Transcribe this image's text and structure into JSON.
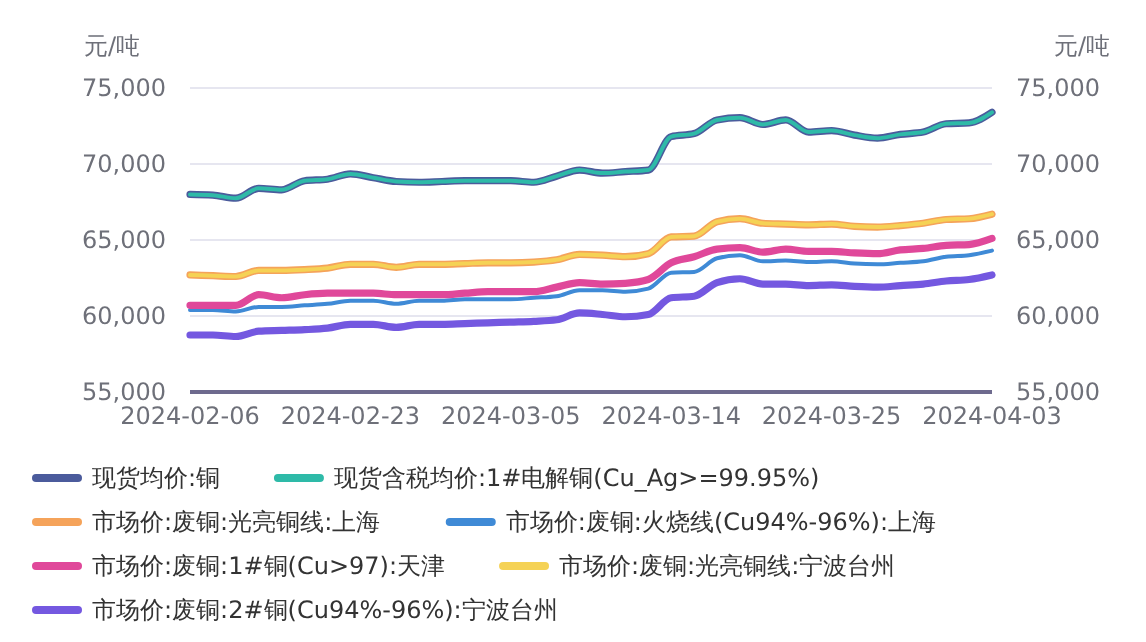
{
  "chart_data": {
    "type": "line",
    "ylabel": "元/吨",
    "y2label": "元/吨",
    "categories": [
      "2024-02-06",
      null,
      null,
      null,
      null,
      null,
      null,
      "2024-02-23",
      null,
      null,
      null,
      null,
      null,
      null,
      "2024-03-05",
      null,
      null,
      null,
      null,
      null,
      null,
      "2024-03-14",
      null,
      null,
      null,
      null,
      null,
      null,
      "2024-03-25",
      null,
      null,
      null,
      null,
      null,
      null,
      "2024-04-03"
    ],
    "ylim": [
      55000,
      75000
    ],
    "yticks": [
      {
        "value": 55000,
        "label": "55,000"
      },
      {
        "value": 60000,
        "label": "60,000"
      },
      {
        "value": 65000,
        "label": "65,000"
      },
      {
        "value": 70000,
        "label": "70,000"
      },
      {
        "value": 75000,
        "label": "75,000"
      }
    ],
    "y2lim": [
      55000,
      75000
    ],
    "y2ticks": [
      {
        "value": 55000,
        "label": "55,000"
      },
      {
        "value": 60000,
        "label": "60,000"
      },
      {
        "value": 65000,
        "label": "65,000"
      },
      {
        "value": 70000,
        "label": "70,000"
      },
      {
        "value": 75000,
        "label": "75,000"
      }
    ],
    "grid": "y",
    "legend": "bottom",
    "marker": "none",
    "line_style": "solid",
    "series": [
      {
        "name": "现货均价:铜",
        "color": "#4b5b9c",
        "values": [
          68000,
          67950,
          67750,
          68400,
          68300,
          68900,
          69000,
          69350,
          69100,
          68850,
          68800,
          68850,
          68900,
          68900,
          68900,
          68800,
          69200,
          69600,
          69400,
          69500,
          69600,
          71800,
          72000,
          72900,
          73050,
          72600,
          72900,
          72100,
          72200,
          71900,
          71700,
          71950,
          72100,
          72650,
          72700,
          73400
        ]
      },
      {
        "name": "现货含税均价:1#电解铜(Cu_Ag>=99.95%)",
        "color": "#2ebaa8",
        "values": [
          68000,
          67950,
          67750,
          68400,
          68300,
          68900,
          69000,
          69350,
          69100,
          68850,
          68800,
          68850,
          68900,
          68900,
          68900,
          68800,
          69200,
          69600,
          69400,
          69500,
          69600,
          71800,
          72000,
          72900,
          73050,
          72600,
          72900,
          72100,
          72200,
          71900,
          71700,
          71950,
          72100,
          72650,
          72700,
          73400
        ]
      },
      {
        "name": "市场价:废铜:光亮铜线:上海",
        "color": "#f5a35a",
        "values": [
          62700,
          62650,
          62600,
          63000,
          63000,
          63050,
          63150,
          63400,
          63400,
          63200,
          63400,
          63400,
          63450,
          63500,
          63500,
          63550,
          63700,
          64050,
          64000,
          63900,
          64100,
          65200,
          65250,
          66200,
          66400,
          66100,
          66050,
          66000,
          66050,
          65900,
          65850,
          65950,
          66100,
          66350,
          66400,
          66700
        ]
      },
      {
        "name": "市场价:废铜:火烧线(Cu94%-96%):上海",
        "color": "#3f8ad6",
        "values": [
          60400,
          60400,
          60300,
          60600,
          60600,
          60700,
          60800,
          61000,
          61000,
          60800,
          61000,
          61000,
          61100,
          61100,
          61100,
          61200,
          61300,
          61700,
          61700,
          61600,
          61800,
          62850,
          62900,
          63800,
          64000,
          63600,
          63650,
          63550,
          63600,
          63450,
          63400,
          63500,
          63600,
          63900,
          64000,
          64300
        ]
      },
      {
        "name": "市场价:废铜:1#铜(Cu>97):天津",
        "color": "#e0489a",
        "values": [
          60700,
          60700,
          60700,
          61400,
          61200,
          61400,
          61500,
          61500,
          61500,
          61400,
          61400,
          61400,
          61500,
          61600,
          61600,
          61600,
          61900,
          62200,
          62100,
          62150,
          62400,
          63500,
          63900,
          64400,
          64500,
          64200,
          64400,
          64250,
          64250,
          64150,
          64100,
          64350,
          64450,
          64650,
          64700,
          65100
        ]
      },
      {
        "name": "市场价:废铜:光亮铜线:宁波台州",
        "color": "#f5d255",
        "values": [
          62700,
          62650,
          62600,
          63000,
          63000,
          63050,
          63150,
          63400,
          63400,
          63200,
          63400,
          63400,
          63450,
          63500,
          63500,
          63550,
          63700,
          64050,
          64000,
          63900,
          64100,
          65200,
          65250,
          66200,
          66400,
          66100,
          66050,
          66000,
          66050,
          65900,
          65850,
          65950,
          66100,
          66350,
          66400,
          66700
        ]
      },
      {
        "name": "市场价:废铜:2#铜(Cu94%-96%):宁波台州",
        "color": "#7458e0",
        "values": [
          58750,
          58750,
          58650,
          59000,
          59050,
          59100,
          59200,
          59450,
          59450,
          59250,
          59450,
          59450,
          59500,
          59550,
          59600,
          59650,
          59750,
          60200,
          60100,
          59950,
          60100,
          61200,
          61300,
          62200,
          62450,
          62100,
          62100,
          62000,
          62050,
          61950,
          61900,
          62000,
          62100,
          62300,
          62400,
          62700
        ]
      }
    ]
  }
}
